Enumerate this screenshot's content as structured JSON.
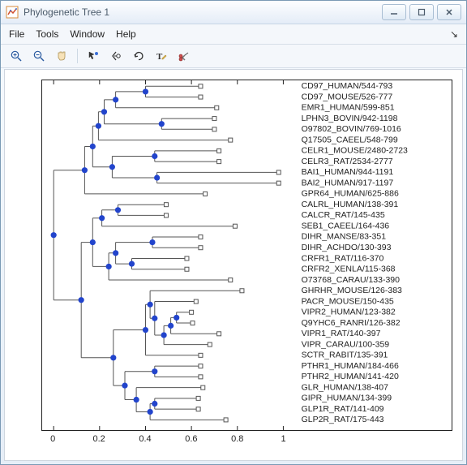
{
  "window": {
    "title": "Phylogenetic Tree 1",
    "menus": [
      "File",
      "Tools",
      "Window",
      "Help"
    ]
  },
  "axis": {
    "xlim": [
      -0.05,
      1.05
    ],
    "xticks": [
      0,
      0.2,
      0.4,
      0.6,
      0.8,
      1
    ],
    "xtick_labels": [
      "0",
      "0.2",
      "0.4",
      "0.6",
      "0.8",
      "1"
    ],
    "background_color": "#ffffff",
    "axis_color": "#222222",
    "line_color": "#555555",
    "internal_node_color": "#2244cc",
    "leaf_marker_stroke": "#555555",
    "leaf_marker_fill": "#ffffff"
  },
  "tree": {
    "leaves": [
      {
        "label": "CD97_HUMAN/544-793",
        "dist": 0.64
      },
      {
        "label": "CD97_MOUSE/526-777",
        "dist": 0.64
      },
      {
        "label": "EMR1_HUMAN/599-851",
        "dist": 0.71
      },
      {
        "label": "LPHN3_BOVIN/942-1198",
        "dist": 0.7
      },
      {
        "label": "O97802_BOVIN/769-1016",
        "dist": 0.7
      },
      {
        "label": "Q17505_CAEEL/548-799",
        "dist": 0.77
      },
      {
        "label": "CELR1_MOUSE/2480-2723",
        "dist": 0.72
      },
      {
        "label": "CELR3_RAT/2534-2777",
        "dist": 0.72
      },
      {
        "label": "BAI1_HUMAN/944-1191",
        "dist": 0.98
      },
      {
        "label": "BAI2_HUMAN/917-1197",
        "dist": 0.98
      },
      {
        "label": "GPR64_HUMAN/625-886",
        "dist": 0.66
      },
      {
        "label": "CALRL_HUMAN/138-391",
        "dist": 0.49
      },
      {
        "label": "CALCR_RAT/145-435",
        "dist": 0.49
      },
      {
        "label": "SEB1_CAEEL/164-436",
        "dist": 0.79
      },
      {
        "label": "DIHR_MANSE/83-351",
        "dist": 0.64
      },
      {
        "label": "DIHR_ACHDO/130-393",
        "dist": 0.64
      },
      {
        "label": "CRFR1_RAT/116-370",
        "dist": 0.58
      },
      {
        "label": "CRFR2_XENLA/115-368",
        "dist": 0.58
      },
      {
        "label": "O73768_CARAU/133-390",
        "dist": 0.77
      },
      {
        "label": "GHRHR_MOUSE/126-383",
        "dist": 0.82
      },
      {
        "label": "PACR_MOUSE/150-435",
        "dist": 0.62
      },
      {
        "label": "VIPR2_HUMAN/123-382",
        "dist": 0.6
      },
      {
        "label": "Q9YHC6_RANRI/126-382",
        "dist": 0.605
      },
      {
        "label": "VIPR1_RAT/140-397",
        "dist": 0.72
      },
      {
        "label": "VIPR_CARAU/100-359",
        "dist": 0.68
      },
      {
        "label": "SCTR_RABIT/135-391",
        "dist": 0.64
      },
      {
        "label": "PTHR1_HUMAN/184-466",
        "dist": 0.64
      },
      {
        "label": "PTHR2_HUMAN/141-420",
        "dist": 0.64
      },
      {
        "label": "GLR_HUMAN/138-407",
        "dist": 0.65
      },
      {
        "label": "GIPR_HUMAN/134-399",
        "dist": 0.63
      },
      {
        "label": "GLP1R_RAT/141-409",
        "dist": 0.63
      },
      {
        "label": "GLP2R_RAT/175-443",
        "dist": 0.75
      }
    ],
    "internals": [
      {
        "id": "n_cd97",
        "children": [
          "L0",
          "L1"
        ],
        "dist": 0.4
      },
      {
        "id": "n_emr",
        "children": [
          "n_cd97",
          "L2"
        ],
        "dist": 0.27
      },
      {
        "id": "n_lphn",
        "children": [
          "L3",
          "L4"
        ],
        "dist": 0.47
      },
      {
        "id": "n_emr_lphn",
        "children": [
          "n_emr",
          "n_lphn"
        ],
        "dist": 0.22
      },
      {
        "id": "n_q17",
        "children": [
          "n_emr_lphn",
          "L5"
        ],
        "dist": 0.195
      },
      {
        "id": "n_celr",
        "children": [
          "L6",
          "L7"
        ],
        "dist": 0.44
      },
      {
        "id": "n_bai",
        "children": [
          "L8",
          "L9"
        ],
        "dist": 0.45
      },
      {
        "id": "n_celr_bai",
        "children": [
          "n_celr",
          "n_bai"
        ],
        "dist": 0.255
      },
      {
        "id": "n_q17_cb",
        "children": [
          "n_q17",
          "n_celr_bai"
        ],
        "dist": 0.17
      },
      {
        "id": "n_top",
        "children": [
          "n_q17_cb",
          "L10"
        ],
        "dist": 0.135
      },
      {
        "id": "n_cal",
        "children": [
          "L11",
          "L12"
        ],
        "dist": 0.28
      },
      {
        "id": "n_seb",
        "children": [
          "n_cal",
          "L13"
        ],
        "dist": 0.21
      },
      {
        "id": "n_dihr",
        "children": [
          "L14",
          "L15"
        ],
        "dist": 0.43
      },
      {
        "id": "n_crfr",
        "children": [
          "L16",
          "L17"
        ],
        "dist": 0.34
      },
      {
        "id": "n_dc",
        "children": [
          "n_dihr",
          "n_crfr"
        ],
        "dist": 0.27
      },
      {
        "id": "n_dco",
        "children": [
          "n_dc",
          "L18"
        ],
        "dist": 0.24
      },
      {
        "id": "n_seb_dco",
        "children": [
          "n_seb",
          "n_dco"
        ],
        "dist": 0.17
      },
      {
        "id": "n_vipr2",
        "children": [
          "L21",
          "L22"
        ],
        "dist": 0.535
      },
      {
        "id": "n_v2_v1",
        "children": [
          "n_vipr2",
          "L23"
        ],
        "dist": 0.51
      },
      {
        "id": "n_vc",
        "children": [
          "n_v2_v1",
          "L24"
        ],
        "dist": 0.48
      },
      {
        "id": "n_pacr",
        "children": [
          "L20",
          "n_vc"
        ],
        "dist": 0.44
      },
      {
        "id": "n_gh",
        "children": [
          "L19",
          "n_pacr"
        ],
        "dist": 0.42
      },
      {
        "id": "n_sctr",
        "children": [
          "n_gh",
          "L25"
        ],
        "dist": 0.4
      },
      {
        "id": "n_pthr",
        "children": [
          "L26",
          "L27"
        ],
        "dist": 0.44
      },
      {
        "id": "n_glxA",
        "children": [
          "L29",
          "L30"
        ],
        "dist": 0.44
      },
      {
        "id": "n_glxB",
        "children": [
          "n_glxA",
          "L31"
        ],
        "dist": 0.42
      },
      {
        "id": "n_glr",
        "children": [
          "L28",
          "n_glxB"
        ],
        "dist": 0.36
      },
      {
        "id": "n_pg",
        "children": [
          "n_pthr",
          "n_glr"
        ],
        "dist": 0.31
      },
      {
        "id": "n_low",
        "children": [
          "n_sctr",
          "n_pg"
        ],
        "dist": 0.26
      },
      {
        "id": "n_mid",
        "children": [
          "n_seb_dco",
          "n_low"
        ],
        "dist": 0.12
      },
      {
        "id": "root",
        "children": [
          "n_top",
          "n_mid"
        ],
        "dist": 0.0
      }
    ]
  }
}
